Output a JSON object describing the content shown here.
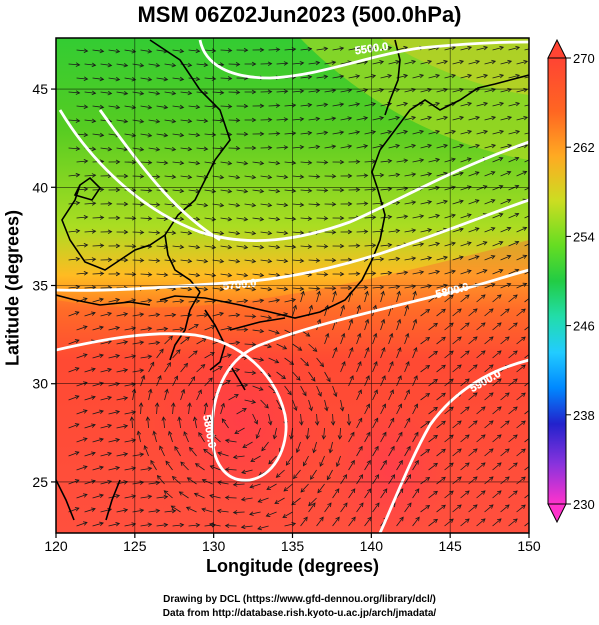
{
  "title": "MSM 06Z02Jun2023 (500.0hPa)",
  "xlabel": "Longitude (degrees)",
  "ylabel": "Latitude  (degrees)",
  "credits": [
    "Drawing by DCL (https://www.gfd-dennou.org/library/dcl/)",
    "Data from http://database.rish.kyoto-u.ac.jp/arch/jmadata/"
  ],
  "map": {
    "lon_range": [
      120,
      150
    ],
    "lat_range": [
      22.4,
      47.6
    ],
    "lon_ticks": [
      120,
      125,
      130,
      135,
      140,
      145,
      150
    ],
    "lat_ticks": [
      25,
      30,
      35,
      40,
      45
    ],
    "grid": true
  },
  "colorbar": {
    "min": 230,
    "max": 270,
    "ticks": [
      270,
      262,
      254,
      246,
      238,
      230
    ],
    "colors": [
      "#ff33cc",
      "#8833dd",
      "#2222cc",
      "#0088ff",
      "#22ccff",
      "#22ddaa",
      "#22cc44",
      "#66dd22",
      "#ccdd22",
      "#ffaa22",
      "#ff6622",
      "#ff4433"
    ]
  },
  "contours": [
    {
      "label": "5500.0",
      "value": 5500
    },
    {
      "label": "5700.0",
      "value": 5700
    },
    {
      "label": "5800.0",
      "value": 5800
    },
    {
      "label": "5800.0",
      "value": 5800
    },
    {
      "label": "5900.0",
      "value": 5900
    }
  ]
}
